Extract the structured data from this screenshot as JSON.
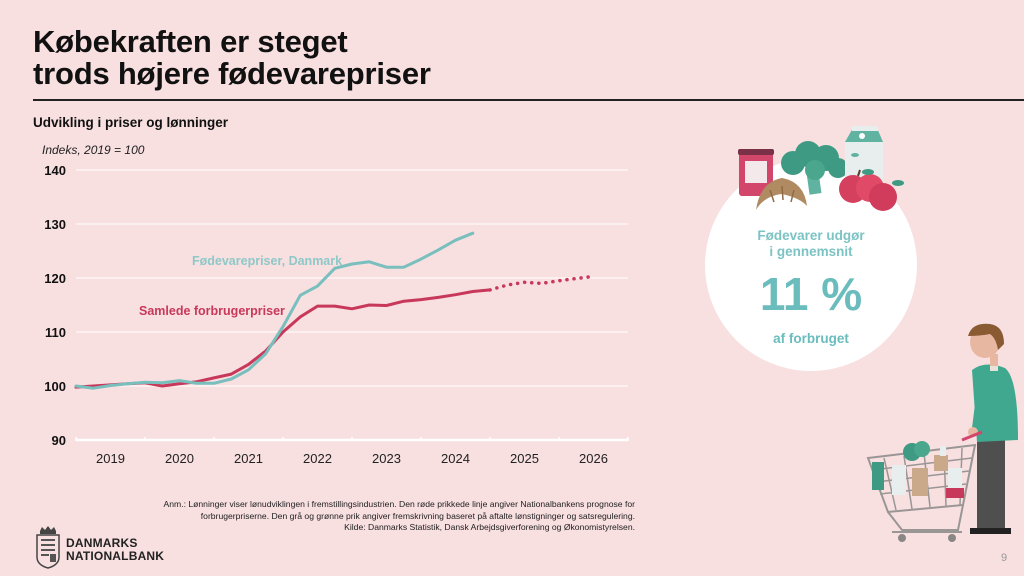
{
  "header": {
    "title_line1": "Købekraften er steget",
    "title_line2": "trods højere fødevarepriser"
  },
  "chart_subtitle": "Udvikling i priser og lønninger",
  "chart_data": {
    "type": "line",
    "title": "Udvikling i priser og lønninger",
    "ylabel": "Indeks, 2019 = 100",
    "xlabel": "",
    "ylim": [
      90,
      140
    ],
    "yticks": [
      90,
      100,
      110,
      120,
      130,
      140
    ],
    "xlim": [
      2019.0,
      2027.0
    ],
    "xtick_labels": [
      "2019",
      "2020",
      "2021",
      "2022",
      "2023",
      "2024",
      "2025",
      "2026"
    ],
    "grid": true,
    "series": [
      {
        "name": "Fødevarepriser, Danmark",
        "color": "#78bfbd",
        "style": "solid",
        "x": [
          2019.0,
          2019.25,
          2019.5,
          2019.75,
          2020.0,
          2020.25,
          2020.5,
          2020.75,
          2021.0,
          2021.25,
          2021.5,
          2021.75,
          2022.0,
          2022.25,
          2022.5,
          2022.75,
          2023.0,
          2023.25,
          2023.5,
          2023.75,
          2024.0,
          2024.25,
          2024.5,
          2024.75
        ],
        "values": [
          100.0,
          99.6,
          100.1,
          100.4,
          100.7,
          100.6,
          101.0,
          100.5,
          100.5,
          101.3,
          103.0,
          106.0,
          111.0,
          116.8,
          118.5,
          121.8,
          122.6,
          123.0,
          122.0,
          122.0,
          123.5,
          125.2,
          127.0,
          128.3
        ]
      },
      {
        "name": "Samlede forbrugerpriser",
        "color": "#c8385a",
        "style": "solid",
        "x": [
          2019.0,
          2019.25,
          2019.5,
          2019.75,
          2020.0,
          2020.25,
          2020.5,
          2020.75,
          2021.0,
          2021.25,
          2021.5,
          2021.75,
          2022.0,
          2022.25,
          2022.5,
          2022.75,
          2023.0,
          2023.25,
          2023.5,
          2023.75,
          2024.0,
          2024.25,
          2024.5,
          2024.75,
          2025.0
        ],
        "values": [
          99.8,
          100.0,
          100.2,
          100.4,
          100.6,
          100.0,
          100.4,
          100.8,
          101.5,
          102.2,
          104.0,
          106.5,
          110.0,
          112.8,
          114.8,
          114.8,
          114.3,
          115.0,
          114.9,
          115.7,
          116.0,
          116.4,
          116.9,
          117.5,
          117.8
        ]
      },
      {
        "name": "Samlede forbrugerpriser (prognose)",
        "color": "#c8385a",
        "style": "dotted",
        "x": [
          2025.0,
          2025.25,
          2025.5,
          2025.75,
          2026.0,
          2026.25,
          2026.5
        ],
        "values": [
          117.8,
          118.7,
          119.2,
          119.0,
          119.5,
          119.9,
          120.3
        ]
      }
    ],
    "annotations": [
      {
        "text": "Fødevarepriser, Danmark",
        "series": 0
      },
      {
        "text": "Samlede forbrugerpriser",
        "series": 1
      }
    ]
  },
  "note": {
    "line1": "Anm.: Lønninger viser lønudviklingen i fremstillingsindustrien. Den røde prikkede linje angiver Nationalbankens prognose for",
    "line2": "forbrugerpriserne. Den grå og grønne prik angiver fremskrivning baseret på aftalte lønstigninger og satsregulering.",
    "line3": "Kilde: Danmarks Statistik, Dansk Arbejdsgiverforening og Økonomistyrelsen."
  },
  "logo": {
    "line1": "DANMARKS",
    "line2": "NATIONALBANK"
  },
  "callout": {
    "line1": "Fødevarer udgør",
    "line2": "i gennemsnit",
    "value": "11 %",
    "line3": "af forbruget"
  },
  "page_number": "9",
  "colors": {
    "background": "#f8dfe0",
    "food": "#78bfbd",
    "cpi": "#c8385a"
  }
}
